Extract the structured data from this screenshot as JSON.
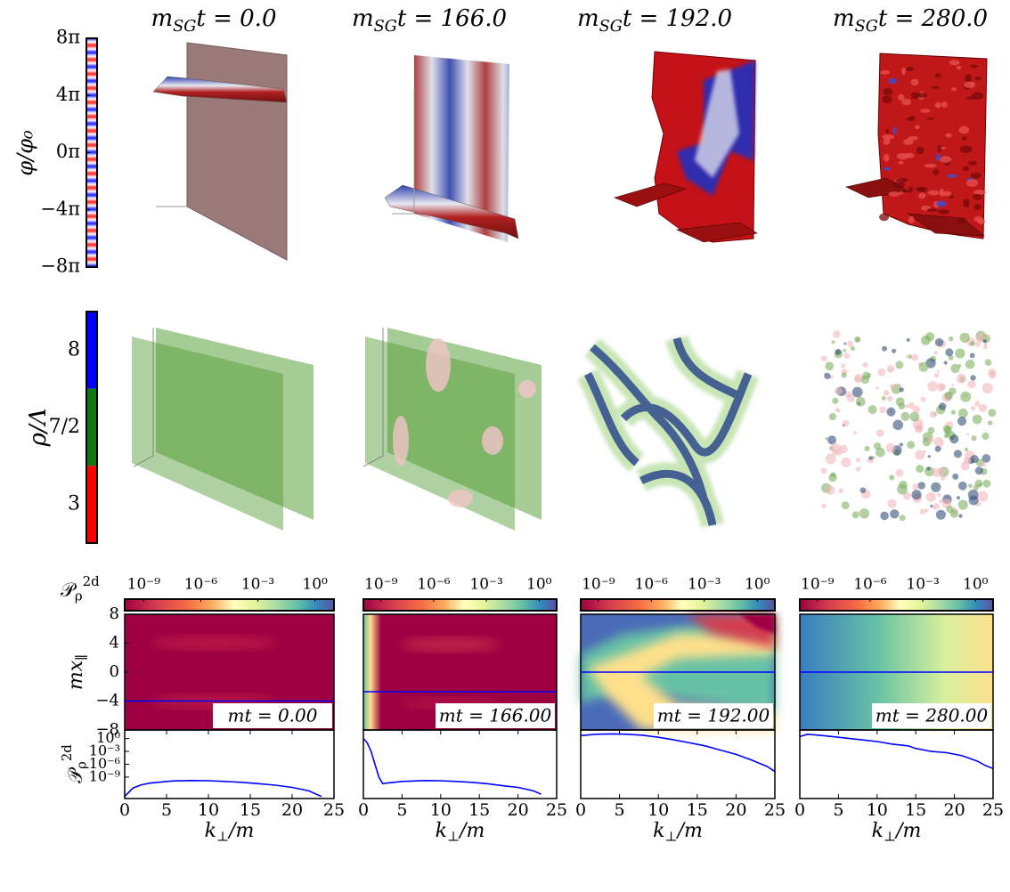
{
  "titles": [
    {
      "base": "m",
      "sub": "SG",
      "tail": "t = 0.0"
    },
    {
      "base": "m",
      "sub": "SG",
      "tail": "t = 166.0"
    },
    {
      "base": "m",
      "sub": "SG",
      "tail": "t = 192.0"
    },
    {
      "base": "m",
      "sub": "SG",
      "tail": "t = 280.0"
    }
  ],
  "phi_colorbar": {
    "label": "φ/φ₀",
    "ylim": [
      -8,
      8
    ],
    "ticks": [
      {
        "value": 8,
        "label": "8π"
      },
      {
        "value": 4,
        "label": "4π"
      },
      {
        "value": 0,
        "label": "0π"
      },
      {
        "value": -4,
        "label": "−4π"
      },
      {
        "value": -8,
        "label": "−8π"
      }
    ]
  },
  "rho_colorbar": {
    "label": "ρ/Λ",
    "segments": [
      {
        "label": "8",
        "color": "#0000ff"
      },
      {
        "label": "7/2",
        "color": "#127812"
      },
      {
        "label": "3",
        "color": "#ff0000"
      }
    ]
  },
  "chart_data": [
    {
      "type": "heatmap",
      "colorbar": {
        "label": {
          "base": "𝒫",
          "sub": "ρ",
          "sup": "2d"
        },
        "log": true,
        "clim": [
          1e-10,
          10
        ],
        "ticks": [
          {
            "value": 1e-09,
            "label": "10⁻⁹"
          },
          {
            "value": 1e-06,
            "label": "10⁻⁶"
          },
          {
            "value": 0.001,
            "label": "10⁻³"
          },
          {
            "value": 1,
            "label": "10⁰"
          }
        ]
      },
      "ylabel": {
        "base": "mx",
        "sub": "∥"
      },
      "ylim": [
        -8,
        8
      ],
      "yticks": [
        {
          "value": 8,
          "label": "8"
        },
        {
          "value": 4,
          "label": "4"
        },
        {
          "value": 0,
          "label": "0"
        },
        {
          "value": -4,
          "label": "−4"
        },
        {
          "value": -8,
          "label": "−8"
        }
      ],
      "slice_y": -4,
      "slice_color": "#0000ff",
      "annotation": "mt = 0.00"
    },
    {
      "type": "heatmap",
      "colorbar": {
        "log": true,
        "clim": [
          1e-10,
          10
        ],
        "ticks": [
          {
            "value": 1e-09,
            "label": "10⁻⁹"
          },
          {
            "value": 1e-06,
            "label": "10⁻⁶"
          },
          {
            "value": 0.001,
            "label": "10⁻³"
          },
          {
            "value": 1,
            "label": "10⁰"
          }
        ]
      },
      "ylim": [
        -8,
        8
      ],
      "slice_y": -2.7,
      "slice_color": "#0000ff",
      "annotation": "mt = 166.00"
    },
    {
      "type": "heatmap",
      "colorbar": {
        "log": true,
        "clim": [
          1e-10,
          10
        ],
        "ticks": [
          {
            "value": 1e-09,
            "label": "10⁻⁹"
          },
          {
            "value": 1e-06,
            "label": "10⁻⁶"
          },
          {
            "value": 0.001,
            "label": "10⁻³"
          },
          {
            "value": 1,
            "label": "10⁰"
          }
        ]
      },
      "ylim": [
        -8,
        8
      ],
      "slice_y": 0,
      "slice_color": "#0000ff",
      "annotation": "mt = 192.00"
    },
    {
      "type": "heatmap",
      "colorbar": {
        "log": true,
        "clim": [
          1e-10,
          10
        ],
        "ticks": [
          {
            "value": 1e-09,
            "label": "10⁻⁹"
          },
          {
            "value": 1e-06,
            "label": "10⁻⁶"
          },
          {
            "value": 0.001,
            "label": "10⁻³"
          },
          {
            "value": 1,
            "label": "10⁰"
          }
        ]
      },
      "ylim": [
        -8,
        8
      ],
      "slice_y": 0,
      "slice_color": "#0000ff",
      "annotation": "mt = 280.00"
    },
    {
      "type": "line",
      "log_y": true,
      "xlim": [
        0,
        25
      ],
      "xticks": [
        0,
        5,
        10,
        15,
        20,
        25
      ],
      "ylim": [
        1e-14,
        100
      ],
      "yticks": [
        {
          "value": 1,
          "label": "10⁰"
        },
        {
          "value": 0.001,
          "label": "10⁻³"
        },
        {
          "value": 1e-06,
          "label": "10⁻⁶"
        },
        {
          "value": 1e-09,
          "label": "10⁻⁹"
        }
      ],
      "ylabel": {
        "base": "𝒫",
        "sub": "ρ",
        "sup": "2d"
      },
      "xlabel": {
        "base": "k",
        "sub": "⊥",
        "tail": "/m"
      },
      "x": [
        0,
        1,
        2,
        3,
        4,
        5,
        6,
        8,
        10,
        12,
        14,
        16,
        18,
        20,
        22,
        23.5
      ],
      "series": [
        {
          "color": "#0000ff",
          "values": [
            3e-14,
            3e-12,
            1.6e-11,
            4e-11,
            6e-11,
            1e-10,
            1.3e-10,
            1.6e-10,
            1.4e-10,
            1e-10,
            6e-11,
            3e-11,
            1.3e-11,
            4e-12,
            6e-13,
            3e-14
          ]
        }
      ]
    },
    {
      "type": "line",
      "log_y": true,
      "xlim": [
        0,
        25
      ],
      "xticks": [
        0,
        5,
        10,
        15,
        20,
        25
      ],
      "ylim": [
        1e-14,
        100
      ],
      "xlabel": {
        "base": "k",
        "sub": "⊥",
        "tail": "/m"
      },
      "x": [
        0,
        0.5,
        1,
        1.5,
        2,
        2.5,
        3,
        5,
        8,
        10,
        12,
        14,
        16,
        18,
        20,
        22,
        23
      ],
      "series": [
        {
          "color": "#0000ff",
          "values": [
            1,
            0.1,
            0.001,
            1e-06,
            1e-09,
            3e-11,
            4e-11,
            1e-10,
            1.6e-10,
            1.4e-10,
            1e-10,
            6e-11,
            3e-11,
            1e-11,
            4e-12,
            6e-13,
            1e-13
          ]
        }
      ]
    },
    {
      "type": "line",
      "log_y": true,
      "xlim": [
        0,
        25
      ],
      "xticks": [
        0,
        5,
        10,
        15,
        20,
        25
      ],
      "ylim": [
        1e-14,
        100
      ],
      "xlabel": {
        "base": "k",
        "sub": "⊥",
        "tail": "/m"
      },
      "x": [
        0,
        2,
        4,
        6,
        8,
        10,
        12,
        14,
        16,
        18,
        20,
        22,
        24,
        25
      ],
      "series": [
        {
          "color": "#0000ff",
          "values": [
            5,
            10,
            12,
            10,
            6,
            2,
            0.5,
            0.1,
            0.02,
            0.002,
            0.0002,
            1e-05,
            3e-07,
            2e-08
          ]
        }
      ]
    },
    {
      "type": "line",
      "log_y": true,
      "xlim": [
        0,
        25
      ],
      "xticks": [
        0,
        5,
        10,
        15,
        20,
        25
      ],
      "ylim": [
        1e-14,
        100
      ],
      "xlabel": {
        "base": "k",
        "sub": "⊥",
        "tail": "/m"
      },
      "x": [
        0,
        1,
        3,
        5,
        8,
        10,
        12,
        14,
        15,
        17,
        19,
        21,
        23,
        24,
        25
      ],
      "series": [
        {
          "color": "#0000ff",
          "values": [
            3,
            10,
            5,
            2,
            0.5,
            0.2,
            0.05,
            0.02,
            0.005,
            0.001,
            0.0005,
            0.0001,
            5e-06,
            5e-07,
            1e-07
          ]
        }
      ]
    }
  ]
}
